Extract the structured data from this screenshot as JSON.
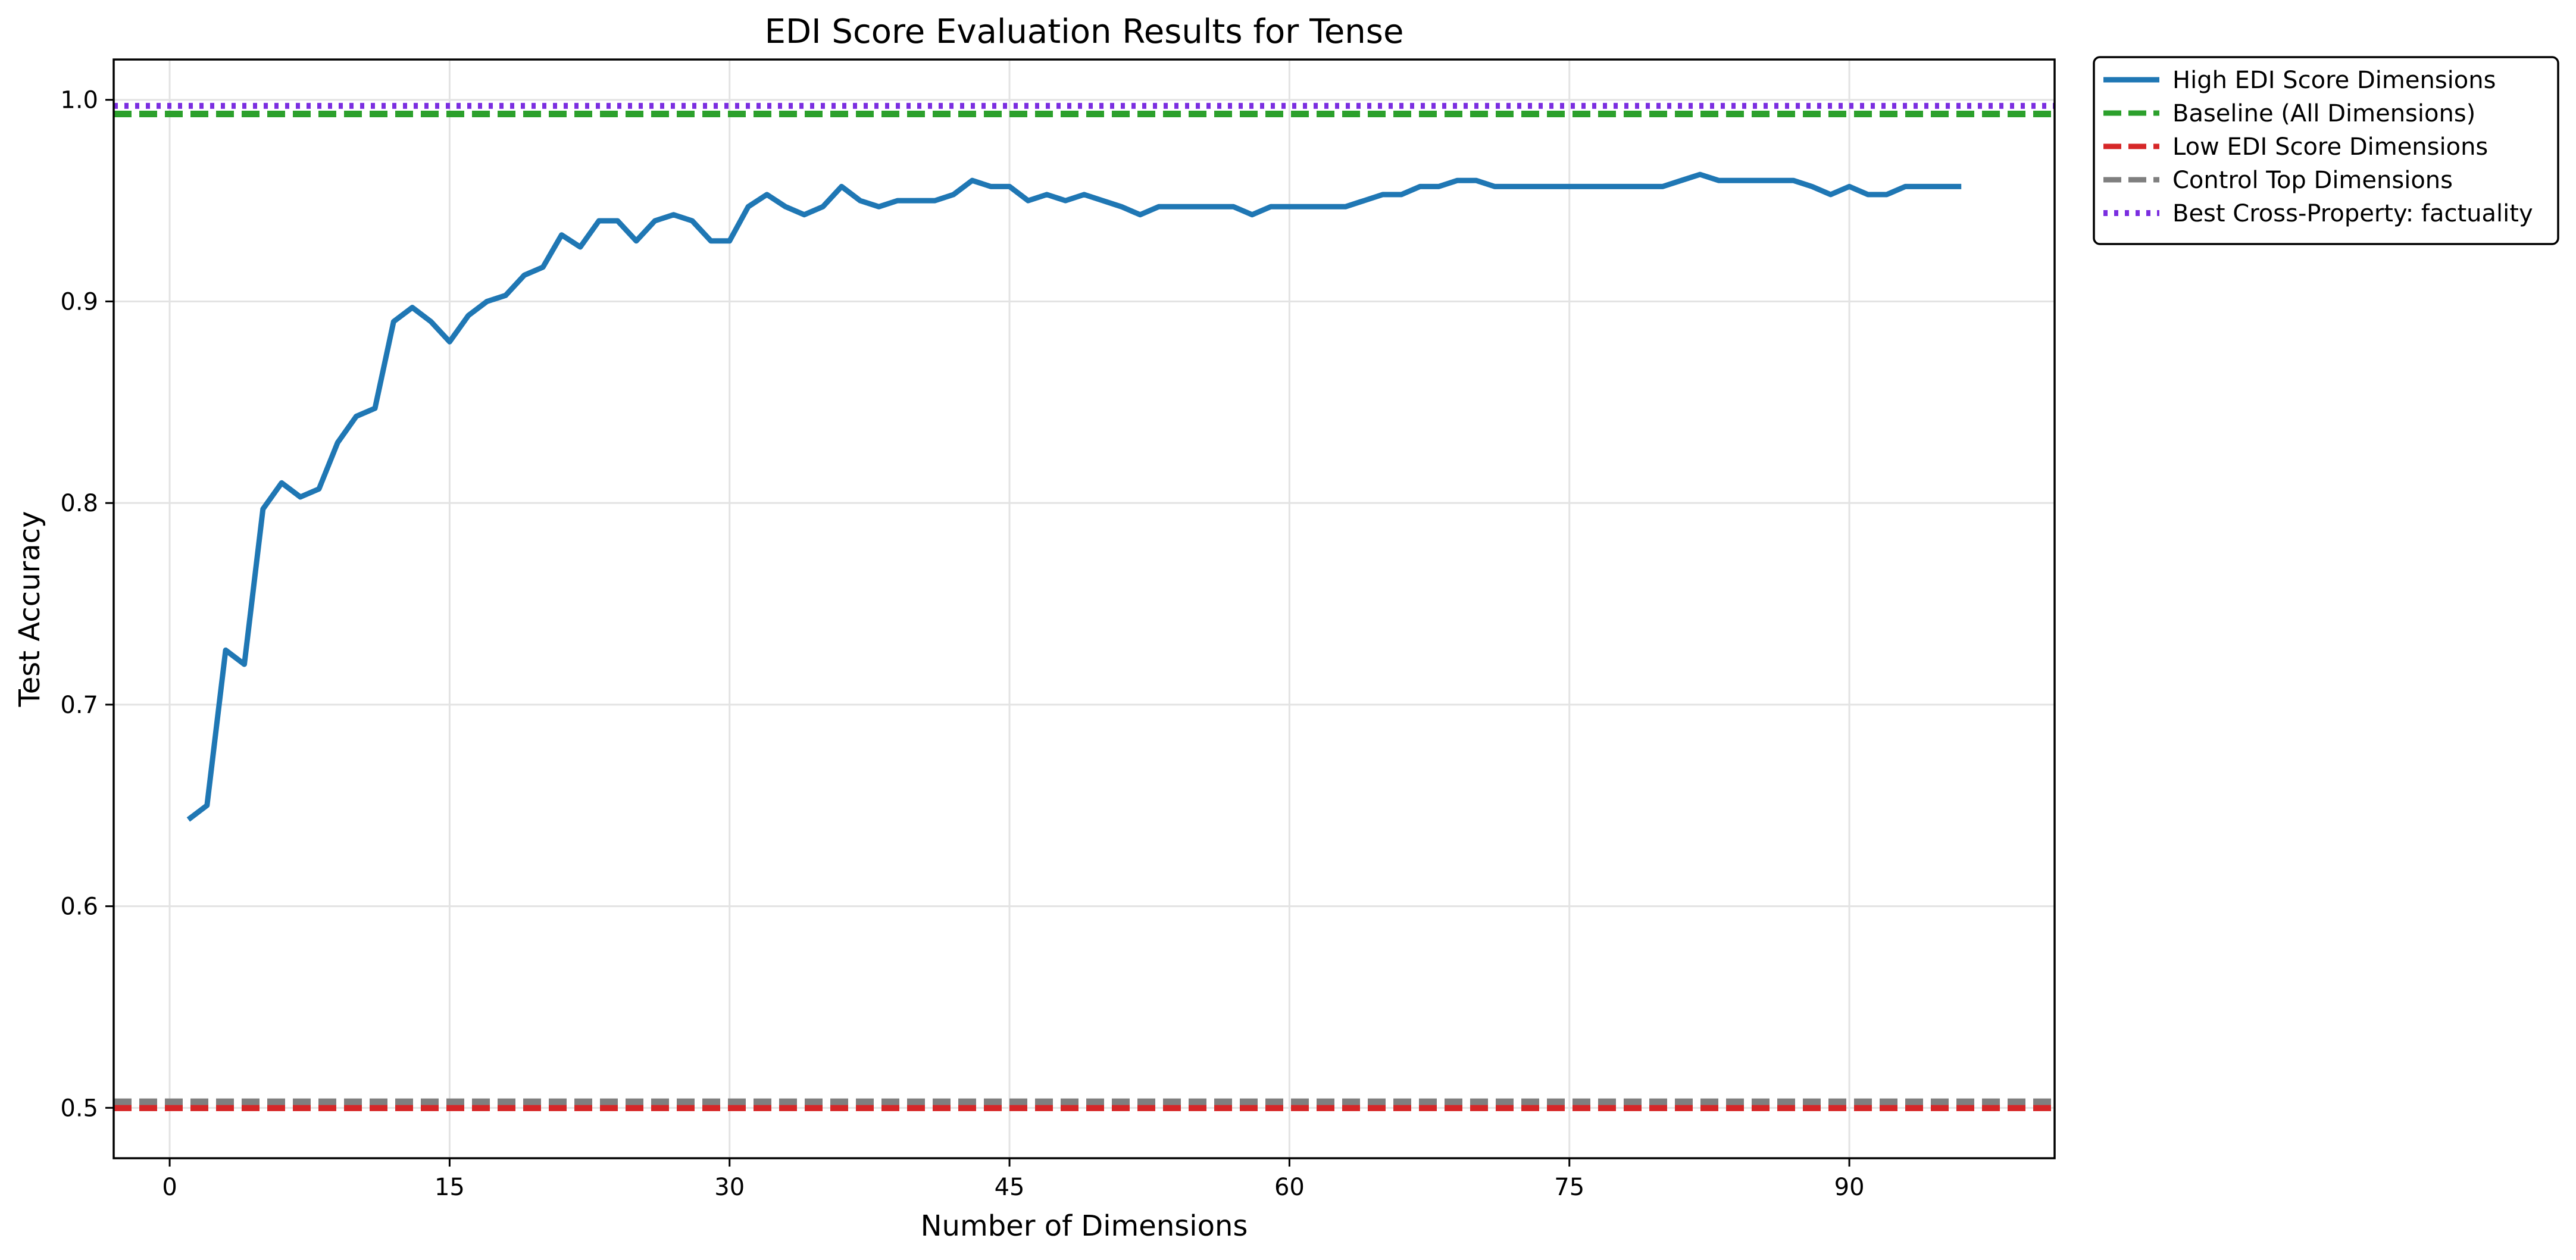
{
  "chart_data": {
    "type": "line",
    "title": "EDI Score Evaluation Results for Tense",
    "xlabel": "Number of Dimensions",
    "ylabel": "Test Accuracy",
    "xlim": [
      -3,
      101
    ],
    "ylim": [
      0.475,
      1.02
    ],
    "xticks": [
      0,
      15,
      30,
      45,
      60,
      75,
      90
    ],
    "yticks": [
      0.5,
      0.6,
      0.7,
      0.8,
      0.9,
      1.0
    ],
    "xtick_labels": [
      "0",
      "15",
      "30",
      "45",
      "60",
      "75",
      "90"
    ],
    "ytick_labels": [
      "0.5",
      "0.6",
      "0.7",
      "0.8",
      "0.9",
      "1.0"
    ],
    "grid": true,
    "legend_position": "outside-top-right",
    "series": [
      {
        "name": "High EDI Score Dimensions",
        "color": "#1f77b4",
        "style": "solid",
        "x": [
          1,
          2,
          3,
          4,
          5,
          6,
          7,
          8,
          9,
          10,
          11,
          12,
          13,
          14,
          15,
          16,
          17,
          18,
          19,
          20,
          21,
          22,
          23,
          24,
          25,
          26,
          27,
          28,
          29,
          30,
          31,
          32,
          33,
          34,
          35,
          36,
          37,
          38,
          39,
          40,
          41,
          42,
          43,
          44,
          45,
          46,
          47,
          48,
          49,
          50,
          51,
          52,
          53,
          54,
          55,
          56,
          57,
          58,
          59,
          60,
          61,
          62,
          63,
          64,
          65,
          66,
          67,
          68,
          69,
          70,
          71,
          72,
          73,
          74,
          75,
          76,
          77,
          78,
          79,
          80,
          81,
          82,
          83,
          84,
          85,
          86,
          87,
          88,
          89,
          90,
          91,
          92,
          93,
          94,
          95,
          96
        ],
        "values": [
          0.643,
          0.65,
          0.727,
          0.72,
          0.797,
          0.81,
          0.803,
          0.807,
          0.83,
          0.843,
          0.847,
          0.89,
          0.897,
          0.89,
          0.88,
          0.893,
          0.9,
          0.903,
          0.913,
          0.917,
          0.933,
          0.927,
          0.94,
          0.94,
          0.93,
          0.94,
          0.943,
          0.94,
          0.93,
          0.93,
          0.947,
          0.953,
          0.947,
          0.943,
          0.947,
          0.957,
          0.95,
          0.947,
          0.95,
          0.95,
          0.95,
          0.953,
          0.96,
          0.957,
          0.957,
          0.95,
          0.953,
          0.95,
          0.953,
          0.95,
          0.947,
          0.943,
          0.947,
          0.947,
          0.947,
          0.947,
          0.947,
          0.943,
          0.947,
          0.947,
          0.947,
          0.947,
          0.947,
          0.95,
          0.953,
          0.953,
          0.957,
          0.957,
          0.96,
          0.96,
          0.957,
          0.957,
          0.957,
          0.957,
          0.957,
          0.957,
          0.957,
          0.957,
          0.957,
          0.957,
          0.96,
          0.963,
          0.96,
          0.96,
          0.96,
          0.96,
          0.96,
          0.957,
          0.953,
          0.957,
          0.953,
          0.953,
          0.957,
          0.957,
          0.957,
          0.957
        ]
      },
      {
        "name": "Baseline (All Dimensions)",
        "color": "#2ca02c",
        "style": "dashed",
        "hline": 0.993
      },
      {
        "name": "Low EDI Score Dimensions",
        "color": "#d62728",
        "style": "dashed",
        "hline": 0.5
      },
      {
        "name": "Control Top Dimensions",
        "color": "#7f7f7f",
        "style": "dashed",
        "hline": 0.503
      },
      {
        "name": "Best Cross-Property: factuality",
        "color": "#7b2ee0",
        "style": "dotted",
        "hline": 0.997
      }
    ]
  }
}
